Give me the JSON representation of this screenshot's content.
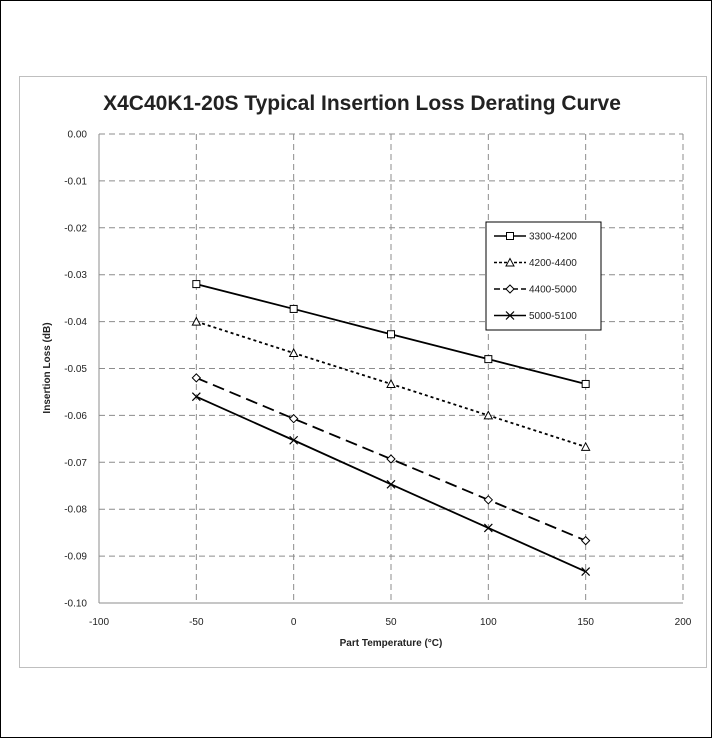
{
  "chart_data": {
    "type": "line",
    "title": "X4C40K1-20S Typical Insertion Loss Derating Curve",
    "xlabel": "Part Temperature (°C)",
    "ylabel": "Insertion Loss (dB)",
    "xlim": [
      -100,
      200
    ],
    "ylim": [
      -0.1,
      0.0
    ],
    "x_ticks": [
      -100,
      -50,
      0,
      50,
      100,
      150,
      200
    ],
    "x_tick_labels": [
      "-100",
      "-50",
      "0",
      "50",
      "100",
      "150",
      "200"
    ],
    "y_ticks": [
      0.0,
      -0.01,
      -0.02,
      -0.03,
      -0.04,
      -0.05,
      -0.06,
      -0.07,
      -0.08,
      -0.09,
      -0.1
    ],
    "y_tick_labels": [
      "0.00",
      "-0.01",
      "-0.02",
      "-0.03",
      "-0.04",
      "-0.05",
      "-0.06",
      "-0.07",
      "-0.08",
      "-0.09",
      "-0.10"
    ],
    "grid": true,
    "legend_position": "right",
    "x": [
      -50,
      0,
      50,
      100,
      150
    ],
    "series": [
      {
        "name": "3300-4200",
        "values": [
          -0.032,
          -0.0373,
          -0.0427,
          -0.048,
          -0.0533
        ],
        "marker": "square",
        "dash": "solid"
      },
      {
        "name": "4200-4400",
        "values": [
          -0.04,
          -0.0467,
          -0.0533,
          -0.06,
          -0.0667
        ],
        "marker": "triangle",
        "dash": "dotted"
      },
      {
        "name": "4400-5000",
        "values": [
          -0.052,
          -0.0607,
          -0.0693,
          -0.078,
          -0.0867
        ],
        "marker": "diamond",
        "dash": "dashed"
      },
      {
        "name": "5000-5100",
        "values": [
          -0.056,
          -0.0653,
          -0.0747,
          -0.084,
          -0.0933
        ],
        "marker": "x",
        "dash": "solid"
      }
    ]
  }
}
